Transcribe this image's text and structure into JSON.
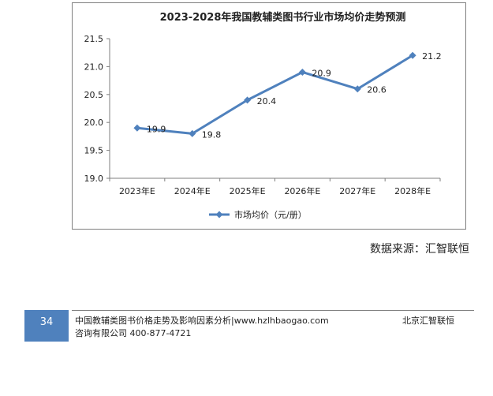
{
  "chart_data": {
    "type": "line",
    "title": "2023-2028年我国教辅类图书行业市场均价走势预测",
    "categories": [
      "2023年E",
      "2024年E",
      "2025年E",
      "2026年E",
      "2027年E",
      "2028年E"
    ],
    "series": [
      {
        "name": "市场均价（元/册）",
        "values": [
          19.9,
          19.8,
          20.4,
          20.9,
          20.6,
          21.2
        ]
      }
    ],
    "y_ticks": [
      "21.5",
      "21.0",
      "20.5",
      "20.0",
      "19.5",
      "19.0"
    ],
    "ylim": [
      19.0,
      21.5
    ],
    "xlabel": "",
    "ylabel": "",
    "legend_position": "bottom",
    "line_color": "#4f81bd"
  },
  "source_text": "数据来源：汇智联恒",
  "footer": {
    "page_number": "34",
    "line1": "中国教辅类图书价格走势及影响因素分析|www.hzlhbaogao.com",
    "line2": "咨询有限公司  400-877-4721",
    "right": "北京汇智联恒"
  }
}
